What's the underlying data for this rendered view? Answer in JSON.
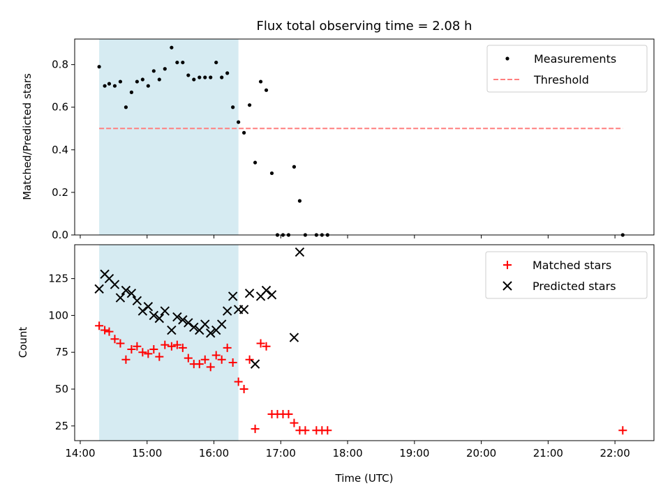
{
  "chart_data": [
    {
      "type": "scatter",
      "title": "Flux total observing time = 2.08 h",
      "xlabel": "",
      "ylabel": "Matched/Predicted stars",
      "xlim": [
        "13:55",
        "22:35"
      ],
      "ylim": [
        0,
        0.92
      ],
      "yticks": [
        0.0,
        0.2,
        0.4,
        0.6,
        0.8
      ],
      "ytick_labels": [
        "0.0",
        "0.2",
        "0.4",
        "0.6",
        "0.8"
      ],
      "grid": false,
      "legend_position": "top-right",
      "highlight_span": {
        "start": "14:17",
        "end": "16:22",
        "color": "#add8e6"
      },
      "threshold": {
        "y": 0.5,
        "start": "14:17",
        "end": "22:07",
        "color": "#ff7f7f"
      },
      "series": [
        {
          "name": "Measurements",
          "marker": "dot",
          "color": "#000000",
          "points": [
            [
              "14:17",
              0.79
            ],
            [
              "14:22",
              0.7
            ],
            [
              "14:26",
              0.71
            ],
            [
              "14:31",
              0.7
            ],
            [
              "14:36",
              0.72
            ],
            [
              "14:41",
              0.6
            ],
            [
              "14:46",
              0.67
            ],
            [
              "14:51",
              0.72
            ],
            [
              "14:56",
              0.73
            ],
            [
              "15:01",
              0.7
            ],
            [
              "15:06",
              0.77
            ],
            [
              "15:11",
              0.73
            ],
            [
              "15:16",
              0.78
            ],
            [
              "15:22",
              0.88
            ],
            [
              "15:27",
              0.81
            ],
            [
              "15:32",
              0.81
            ],
            [
              "15:37",
              0.75
            ],
            [
              "15:42",
              0.73
            ],
            [
              "15:47",
              0.74
            ],
            [
              "15:52",
              0.74
            ],
            [
              "15:57",
              0.74
            ],
            [
              "16:02",
              0.81
            ],
            [
              "16:07",
              0.74
            ],
            [
              "16:12",
              0.76
            ],
            [
              "16:17",
              0.6
            ],
            [
              "16:22",
              0.53
            ],
            [
              "16:27",
              0.48
            ],
            [
              "16:32",
              0.61
            ],
            [
              "16:37",
              0.34
            ],
            [
              "16:42",
              0.72
            ],
            [
              "16:47",
              0.68
            ],
            [
              "16:52",
              0.29
            ],
            [
              "16:57",
              0.0
            ],
            [
              "17:02",
              0.0
            ],
            [
              "17:07",
              0.0
            ],
            [
              "17:12",
              0.32
            ],
            [
              "17:17",
              0.16
            ],
            [
              "17:22",
              0.0
            ],
            [
              "17:32",
              0.0
            ],
            [
              "17:37",
              0.0
            ],
            [
              "17:42",
              0.0
            ],
            [
              "22:07",
              0.0
            ]
          ]
        },
        {
          "name": "Threshold",
          "marker": "dashed-line",
          "color": "#ff7f7f"
        }
      ]
    },
    {
      "type": "scatter",
      "title": "",
      "xlabel": "Time (UTC)",
      "ylabel": "Count",
      "xlim": [
        "13:55",
        "22:35"
      ],
      "ylim": [
        15,
        148
      ],
      "xticks": [
        "14:00",
        "15:00",
        "16:00",
        "17:00",
        "18:00",
        "19:00",
        "20:00",
        "21:00",
        "22:00"
      ],
      "yticks": [
        25,
        50,
        75,
        100,
        125
      ],
      "grid": false,
      "legend_position": "top-right",
      "highlight_span": {
        "start": "14:17",
        "end": "16:22",
        "color": "#add8e6"
      },
      "series": [
        {
          "name": "Matched stars",
          "marker": "plus",
          "color": "#ff0000",
          "points": [
            [
              "14:17",
              93
            ],
            [
              "14:22",
              90
            ],
            [
              "14:26",
              89
            ],
            [
              "14:31",
              84
            ],
            [
              "14:36",
              81
            ],
            [
              "14:41",
              70
            ],
            [
              "14:46",
              77
            ],
            [
              "14:51",
              79
            ],
            [
              "14:56",
              75
            ],
            [
              "15:01",
              74
            ],
            [
              "15:06",
              77
            ],
            [
              "15:11",
              72
            ],
            [
              "15:16",
              80
            ],
            [
              "15:22",
              79
            ],
            [
              "15:27",
              80
            ],
            [
              "15:32",
              78
            ],
            [
              "15:37",
              71
            ],
            [
              "15:42",
              67
            ],
            [
              "15:47",
              67
            ],
            [
              "15:52",
              70
            ],
            [
              "15:57",
              65
            ],
            [
              "16:02",
              73
            ],
            [
              "16:07",
              70
            ],
            [
              "16:12",
              78
            ],
            [
              "16:17",
              68
            ],
            [
              "16:22",
              55
            ],
            [
              "16:27",
              50
            ],
            [
              "16:32",
              70
            ],
            [
              "16:37",
              23
            ],
            [
              "16:42",
              81
            ],
            [
              "16:47",
              79
            ],
            [
              "16:52",
              33
            ],
            [
              "16:57",
              33
            ],
            [
              "17:02",
              33
            ],
            [
              "17:07",
              33
            ],
            [
              "17:12",
              27
            ],
            [
              "17:17",
              22
            ],
            [
              "17:22",
              22
            ],
            [
              "17:32",
              22
            ],
            [
              "17:37",
              22
            ],
            [
              "17:42",
              22
            ],
            [
              "22:07",
              22
            ]
          ]
        },
        {
          "name": "Predicted stars",
          "marker": "x",
          "color": "#000000",
          "points": [
            [
              "14:17",
              118
            ],
            [
              "14:22",
              128
            ],
            [
              "14:26",
              125
            ],
            [
              "14:31",
              121
            ],
            [
              "14:36",
              112
            ],
            [
              "14:41",
              117
            ],
            [
              "14:46",
              115
            ],
            [
              "14:51",
              110
            ],
            [
              "14:56",
              103
            ],
            [
              "15:01",
              106
            ],
            [
              "15:06",
              100
            ],
            [
              "15:11",
              98
            ],
            [
              "15:16",
              103
            ],
            [
              "15:22",
              90
            ],
            [
              "15:27",
              99
            ],
            [
              "15:32",
              97
            ],
            [
              "15:37",
              95
            ],
            [
              "15:42",
              92
            ],
            [
              "15:47",
              90
            ],
            [
              "15:52",
              94
            ],
            [
              "15:57",
              88
            ],
            [
              "16:02",
              90
            ],
            [
              "16:07",
              94
            ],
            [
              "16:12",
              103
            ],
            [
              "16:17",
              113
            ],
            [
              "16:22",
              104
            ],
            [
              "16:27",
              104
            ],
            [
              "16:32",
              115
            ],
            [
              "16:37",
              67
            ],
            [
              "16:42",
              113
            ],
            [
              "16:47",
              117
            ],
            [
              "16:52",
              114
            ],
            [
              "17:12",
              85
            ],
            [
              "17:17",
              143
            ]
          ]
        }
      ]
    }
  ]
}
